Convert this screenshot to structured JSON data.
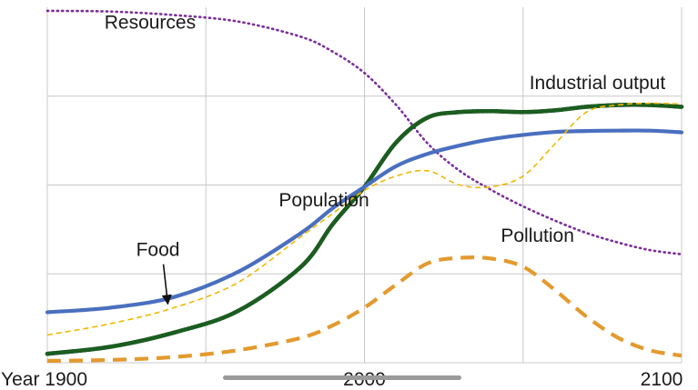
{
  "chart_data": {
    "type": "line",
    "title": "",
    "xlabel": "",
    "ylabel": "",
    "xlim": [
      1900,
      2100
    ],
    "ylim": [
      0,
      100
    ],
    "grid": true,
    "x_ticks": [
      1900,
      2000,
      2100
    ],
    "x_tick_labels": [
      "Year 1900",
      "2000",
      "2100"
    ],
    "series": [
      {
        "name": "Resources",
        "color": "#7b2d9b",
        "style": "dotted",
        "x": [
          1900,
          1920,
          1940,
          1960,
          1980,
          1990,
          2000,
          2010,
          2020,
          2030,
          2040,
          2050,
          2060,
          2070,
          2080,
          2090,
          2100
        ],
        "y": [
          99,
          98.8,
          97.8,
          96,
          91.7,
          87.5,
          81.5,
          72.5,
          61.6,
          54,
          48.6,
          44,
          40,
          36.5,
          33.8,
          31.7,
          30.5
        ]
      },
      {
        "name": "Industrial output",
        "color": "#1a5e20",
        "style": "dotted-thick",
        "x": [
          1900,
          1920,
          1940,
          1960,
          1980,
          1990,
          2000,
          2010,
          2020,
          2030,
          2040,
          2050,
          2060,
          2070,
          2080,
          2090,
          2100
        ],
        "y": [
          2.5,
          4.5,
          8.5,
          14.5,
          27,
          39,
          49.5,
          62,
          69,
          70.5,
          70.8,
          70.5,
          71,
          72,
          72.5,
          72.5,
          72
        ]
      },
      {
        "name": "Population",
        "color": "#4a6fbf",
        "style": "solid",
        "x": [
          1900,
          1920,
          1940,
          1960,
          1980,
          1990,
          2000,
          2010,
          2020,
          2030,
          2040,
          2050,
          2060,
          2070,
          2080,
          2090,
          2100
        ],
        "y": [
          14.2,
          15.5,
          18.5,
          25.5,
          36.5,
          43.5,
          49.5,
          55.3,
          58.8,
          61.1,
          62.9,
          64.1,
          64.9,
          65.2,
          65.3,
          65.3,
          64.8
        ]
      },
      {
        "name": "Food",
        "color": "#f2b800",
        "style": "dashed-thin",
        "x": [
          1900,
          1920,
          1940,
          1960,
          1980,
          1990,
          2000,
          2010,
          2020,
          2030,
          2040,
          2050,
          2060,
          2070,
          2080,
          2090,
          2100
        ],
        "y": [
          7.8,
          11,
          15.5,
          22.5,
          35.5,
          42,
          48.5,
          52.5,
          54,
          50,
          49.5,
          52.5,
          61.5,
          70.5,
          72.5,
          73,
          72.8
        ]
      },
      {
        "name": "Pollution",
        "color": "#e39a2e",
        "style": "dashed-thick",
        "x": [
          1900,
          1920,
          1940,
          1960,
          1980,
          1990,
          2000,
          2010,
          2020,
          2030,
          2040,
          2050,
          2060,
          2070,
          2080,
          2090,
          2100
        ],
        "y": [
          0.5,
          0.8,
          1.6,
          3.5,
          7,
          10.5,
          15.5,
          22,
          28,
          29.5,
          29.3,
          27,
          20.5,
          13,
          7,
          3.5,
          2
        ]
      }
    ],
    "annotations": [
      {
        "text": "Resources",
        "x": 1918,
        "y": 94
      },
      {
        "text": "Industrial output",
        "x": 2052,
        "y": 77
      },
      {
        "text": "Population",
        "x": 1973,
        "y": 44
      },
      {
        "text": "Pollution",
        "x": 2043,
        "y": 34
      },
      {
        "text": "Food",
        "x": 1928,
        "y": 30,
        "arrow_to": [
          1938,
          15.5
        ]
      }
    ]
  }
}
